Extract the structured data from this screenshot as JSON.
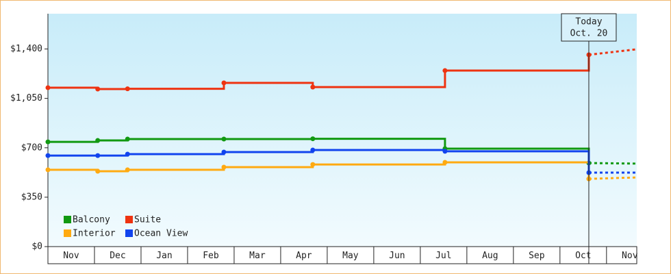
{
  "chart_data": {
    "type": "step-line",
    "ylim": [
      0,
      1650
    ],
    "yticks": [
      {
        "value": 0,
        "label": "$0"
      },
      {
        "value": 350,
        "label": "$350"
      },
      {
        "value": 700,
        "label": "$700"
      },
      {
        "value": 1050,
        "label": "$1,050"
      },
      {
        "value": 1400,
        "label": "$1,400"
      }
    ],
    "xlim": [
      0,
      12.65
    ],
    "xticks": [
      {
        "value": 0.5,
        "label": "Nov"
      },
      {
        "value": 1.5,
        "label": "Dec"
      },
      {
        "value": 2.5,
        "label": "Jan"
      },
      {
        "value": 3.5,
        "label": "Feb"
      },
      {
        "value": 4.5,
        "label": "Mar"
      },
      {
        "value": 5.5,
        "label": "Apr"
      },
      {
        "value": 6.5,
        "label": "May"
      },
      {
        "value": 7.5,
        "label": "Jun"
      },
      {
        "value": 8.5,
        "label": "Jul"
      },
      {
        "value": 9.5,
        "label": "Aug"
      },
      {
        "value": 10.5,
        "label": "Sep"
      },
      {
        "value": 11.5,
        "label": "Oct"
      },
      {
        "value": 12.5,
        "label": "Nov"
      }
    ],
    "today": {
      "x": 11.62,
      "label": "Today",
      "date": "Oct. 20"
    },
    "x": [
      0,
      1.07,
      1.71,
      3.78,
      5.69,
      8.53,
      11.62,
      12.65
    ],
    "series": [
      {
        "name": "Balcony",
        "color": "#119911",
        "values": [
          742,
          752,
          762,
          762,
          764,
          694,
          592,
          588
        ]
      },
      {
        "name": "Suite",
        "color": "#ee3311",
        "values": [
          1126,
          1116,
          1118,
          1160,
          1130,
          1247,
          1359,
          1398
        ]
      },
      {
        "name": "Interior",
        "color": "#ffaa11",
        "values": [
          544,
          534,
          544,
          563,
          582,
          597,
          480,
          490
        ]
      },
      {
        "name": "Ocean View",
        "color": "#1144ee",
        "values": [
          645,
          645,
          655,
          670,
          684,
          675,
          524,
          524
        ]
      }
    ]
  }
}
